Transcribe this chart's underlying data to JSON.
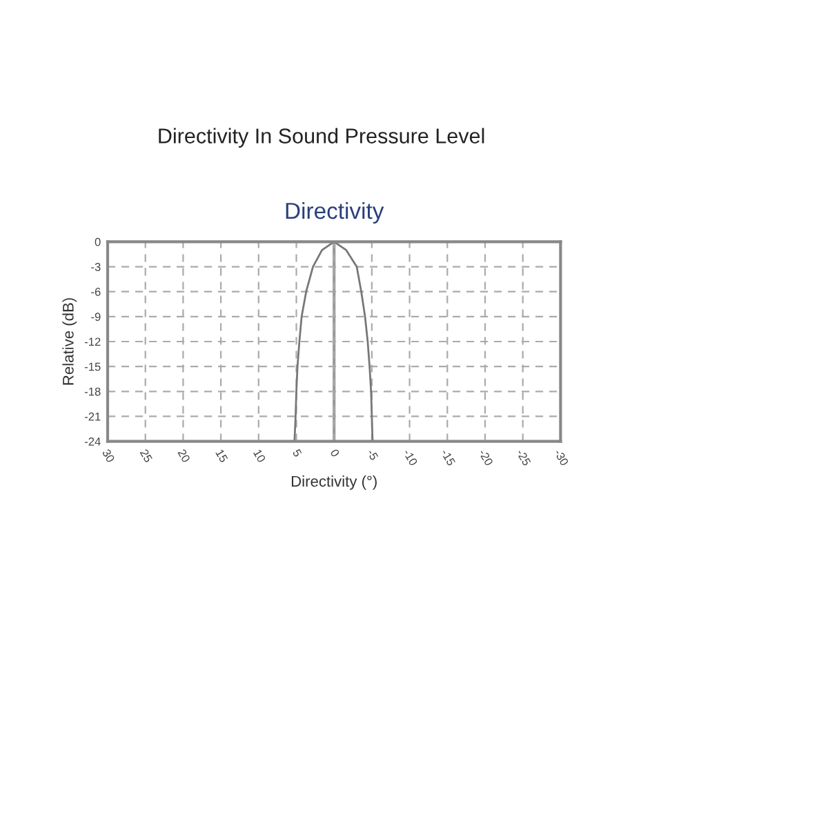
{
  "chart_data": {
    "type": "line",
    "title": "Directivity In Sound Pressure Level",
    "subtitle": "Directivity",
    "xlabel": "Directivity (°)",
    "ylabel": "Relative (dB)",
    "x": [
      5.25,
      5.1,
      5.0,
      4.85,
      4.6,
      4.3,
      3.7,
      2.8,
      1.6,
      0,
      -1.6,
      -3.0,
      -3.6,
      -4.1,
      -4.45,
      -4.7,
      -4.9,
      -5.0,
      -5.1
    ],
    "series": [
      {
        "color": "#777777",
        "values": [
          -24,
          -21,
          -18,
          -15,
          -12,
          -9,
          -6,
          -3,
          -1,
          0,
          -1,
          -3,
          -6,
          -9,
          -12,
          -15,
          -18,
          -21,
          -24
        ]
      }
    ],
    "xlim": [
      30,
      -30
    ],
    "xticks": [
      30,
      25,
      20,
      15,
      10,
      5,
      0,
      -5,
      -10,
      -15,
      -20,
      -25,
      -30
    ],
    "ylim": [
      -24,
      0
    ],
    "yticks": [
      0,
      -3,
      -6,
      -9,
      -12,
      -15,
      -18,
      -21,
      -24
    ],
    "ref_lines": [
      {
        "axis": "x",
        "value": 0,
        "label": null,
        "color": "#999999"
      }
    ],
    "grid": true,
    "line_style": "solid",
    "marker": "none"
  }
}
